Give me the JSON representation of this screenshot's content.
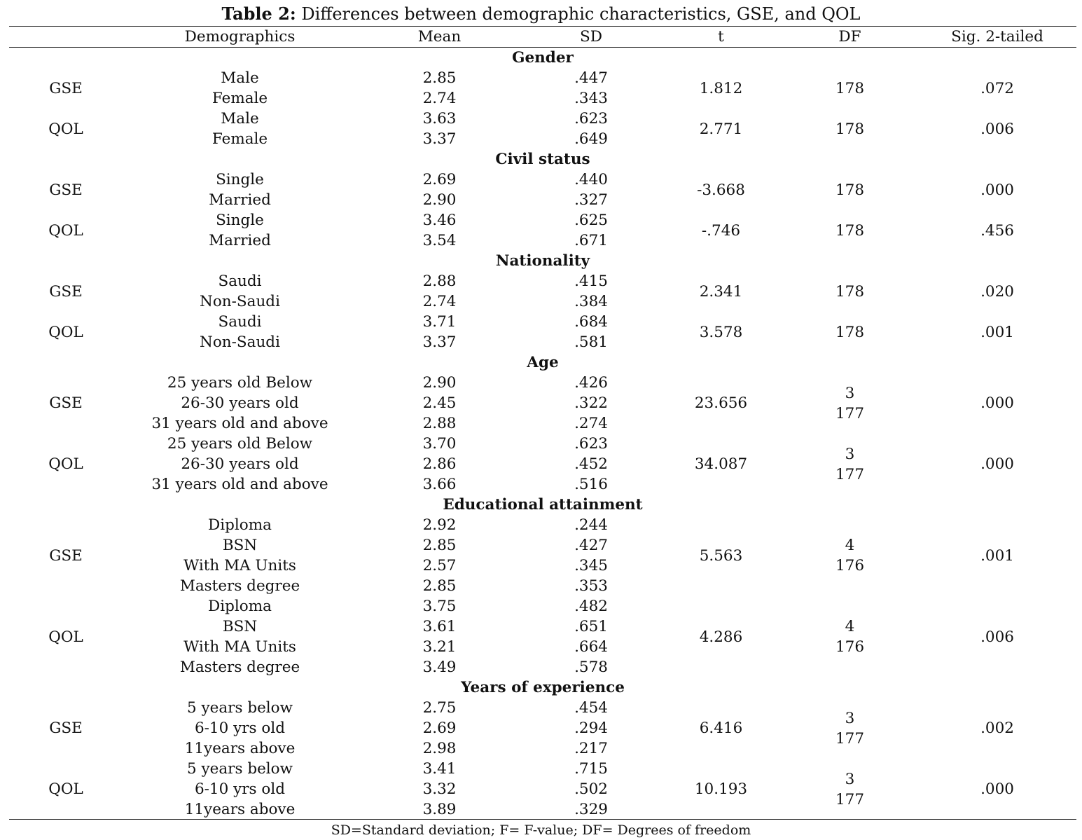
{
  "caption": {
    "label": "Table 2:",
    "text": "Differences between demographic characteristics, GSE, and QOL"
  },
  "headers": [
    "",
    "Demographics",
    "Mean",
    "SD",
    "t",
    "DF",
    "Sig. 2-tailed"
  ],
  "sections": [
    {
      "title": "Gender",
      "groups": [
        {
          "measure": "GSE",
          "t": "1.812",
          "df": [
            "178"
          ],
          "sig": ".072",
          "rows": [
            {
              "label": "Male",
              "mean": "2.85",
              "sd": ".447"
            },
            {
              "label": "Female",
              "mean": "2.74",
              "sd": ".343"
            }
          ]
        },
        {
          "measure": "QOL",
          "t": "2.771",
          "df": [
            "178"
          ],
          "sig": ".006",
          "rows": [
            {
              "label": "Male",
              "mean": "3.63",
              "sd": ".623"
            },
            {
              "label": "Female",
              "mean": "3.37",
              "sd": ".649"
            }
          ]
        }
      ]
    },
    {
      "title": "Civil status",
      "groups": [
        {
          "measure": "GSE",
          "t": "-3.668",
          "df": [
            "178"
          ],
          "sig": ".000",
          "rows": [
            {
              "label": "Single",
              "mean": "2.69",
              "sd": ".440"
            },
            {
              "label": "Married",
              "mean": "2.90",
              "sd": ".327"
            }
          ]
        },
        {
          "measure": "QOL",
          "t": "-.746",
          "df": [
            "178"
          ],
          "sig": ".456",
          "rows": [
            {
              "label": "Single",
              "mean": "3.46",
              "sd": ".625"
            },
            {
              "label": "Married",
              "mean": "3.54",
              "sd": ".671"
            }
          ]
        }
      ]
    },
    {
      "title": "Nationality",
      "groups": [
        {
          "measure": "GSE",
          "t": "2.341",
          "df": [
            "178"
          ],
          "sig": ".020",
          "rows": [
            {
              "label": "Saudi",
              "mean": "2.88",
              "sd": ".415"
            },
            {
              "label": "Non-Saudi",
              "mean": "2.74",
              "sd": ".384"
            }
          ]
        },
        {
          "measure": "QOL",
          "t": "3.578",
          "df": [
            "178"
          ],
          "sig": ".001",
          "rows": [
            {
              "label": "Saudi",
              "mean": "3.71",
              "sd": ".684"
            },
            {
              "label": "Non-Saudi",
              "mean": "3.37",
              "sd": ".581"
            }
          ]
        }
      ]
    },
    {
      "title": "Age",
      "groups": [
        {
          "measure": "GSE",
          "t": "23.656",
          "df": [
            "3",
            "177"
          ],
          "sig": ".000",
          "rows": [
            {
              "label": "25 years old Below",
              "mean": "2.90",
              "sd": ".426"
            },
            {
              "label": "26-30 years old",
              "mean": "2.45",
              "sd": ".322"
            },
            {
              "label": "31 years old and above",
              "mean": "2.88",
              "sd": ".274"
            }
          ]
        },
        {
          "measure": "QOL",
          "t": "34.087",
          "df": [
            "3",
            "177"
          ],
          "sig": ".000",
          "rows": [
            {
              "label": "25 years old Below",
              "mean": "3.70",
              "sd": ".623"
            },
            {
              "label": "26-30 years old",
              "mean": "2.86",
              "sd": ".452"
            },
            {
              "label": "31 years old and above",
              "mean": "3.66",
              "sd": ".516"
            }
          ]
        }
      ]
    },
    {
      "title": "Educational attainment",
      "groups": [
        {
          "measure": "GSE",
          "t": "5.563",
          "df": [
            "4",
            "176"
          ],
          "sig": ".001",
          "rows": [
            {
              "label": "Diploma",
              "mean": "2.92",
              "sd": ".244"
            },
            {
              "label": "BSN",
              "mean": "2.85",
              "sd": ".427"
            },
            {
              "label": "With MA Units",
              "mean": "2.57",
              "sd": ".345"
            },
            {
              "label": "Masters degree",
              "mean": "2.85",
              "sd": ".353"
            }
          ]
        },
        {
          "measure": "QOL",
          "t": "4.286",
          "df": [
            "4",
            "176"
          ],
          "sig": ".006",
          "rows": [
            {
              "label": "Diploma",
              "mean": "3.75",
              "sd": ".482"
            },
            {
              "label": "BSN",
              "mean": "3.61",
              "sd": ".651"
            },
            {
              "label": "With MA Units",
              "mean": "3.21",
              "sd": ".664"
            },
            {
              "label": "Masters degree",
              "mean": "3.49",
              "sd": ".578"
            }
          ]
        }
      ]
    },
    {
      "title": "Years of experience",
      "groups": [
        {
          "measure": "GSE",
          "t": "6.416",
          "df": [
            "3",
            "177"
          ],
          "sig": ".002",
          "rows": [
            {
              "label": "5 years below",
              "mean": "2.75",
              "sd": ".454"
            },
            {
              "label": "6-10 yrs old",
              "mean": "2.69",
              "sd": ".294"
            },
            {
              "label": "11years above",
              "mean": "2.98",
              "sd": ".217"
            }
          ]
        },
        {
          "measure": "QOL",
          "t": "10.193",
          "df": [
            "3",
            "177"
          ],
          "sig": ".000",
          "rows": [
            {
              "label": "5 years below",
              "mean": "3.41",
              "sd": ".715"
            },
            {
              "label": "6-10 yrs old",
              "mean": "3.32",
              "sd": ".502"
            },
            {
              "label": "11years above",
              "mean": "3.89",
              "sd": ".329"
            }
          ]
        }
      ]
    }
  ],
  "footnote": "SD=Standard deviation; F= F-value; DF= Degrees of freedom"
}
